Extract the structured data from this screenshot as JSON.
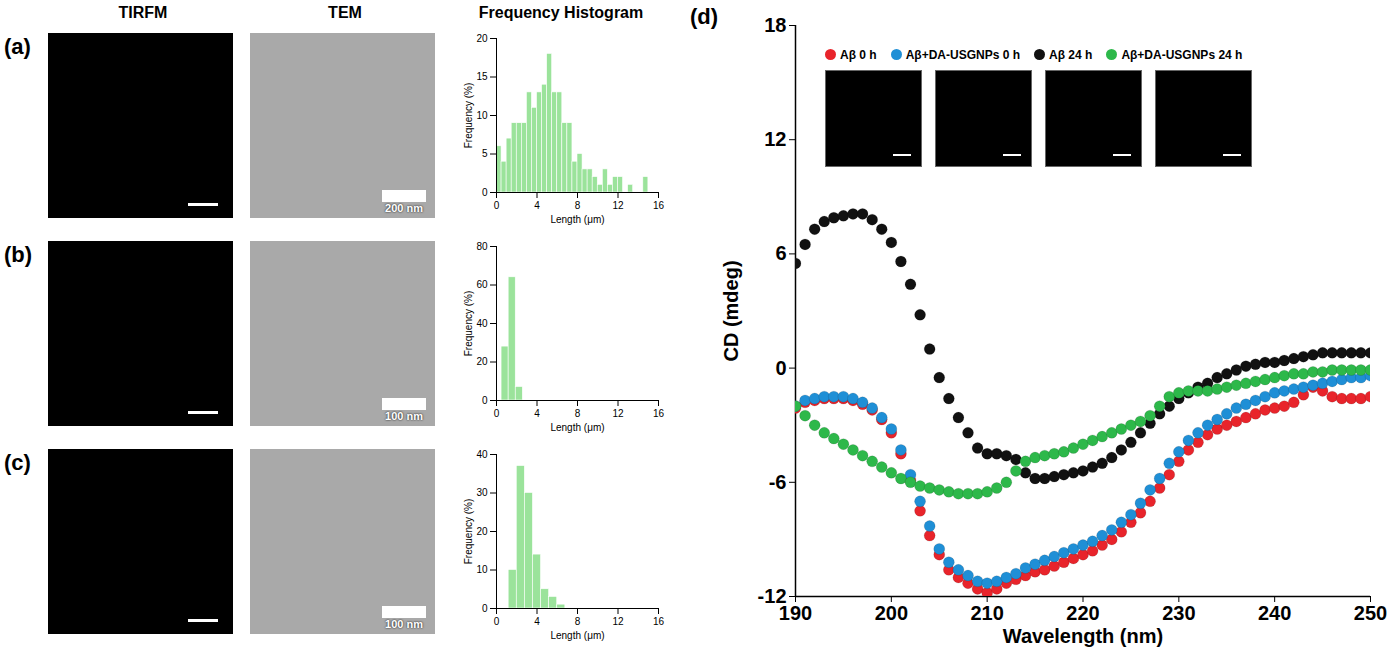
{
  "chart_data": [
    {
      "type": "histogram",
      "xlabel": "Length (μm)",
      "ylabel": "Frequency (%)",
      "bins": [
        0,
        0.5,
        1,
        1.5,
        2,
        2.5,
        3,
        3.5,
        4,
        4.5,
        5,
        5.5,
        6,
        6.5,
        7,
        7.5,
        8,
        8.5,
        9,
        9.5,
        10,
        10.5,
        11,
        11.5,
        12,
        12.5,
        13,
        13.5,
        14,
        14.5,
        15
      ],
      "values": [
        6,
        4,
        7,
        9,
        9,
        9,
        13,
        11,
        13,
        14,
        18,
        13,
        13,
        9,
        9,
        4,
        5,
        3,
        3,
        2,
        1,
        3,
        1,
        2,
        2,
        0,
        1,
        0,
        0,
        2
      ],
      "color": "#9be39b",
      "xlim": [
        0,
        16
      ],
      "xticks": [
        0,
        4,
        8,
        12,
        16
      ],
      "ylim": [
        0,
        20
      ],
      "yticks": [
        0,
        5,
        10,
        15,
        20
      ]
    },
    {
      "type": "histogram",
      "xlabel": "Length (μm)",
      "ylabel": "Frequency (%)",
      "bins": [
        0.5,
        1.2,
        1.9,
        2.6
      ],
      "values": [
        28,
        64,
        7
      ],
      "color": "#9be39b",
      "xlim": [
        0,
        16
      ],
      "xticks": [
        0,
        4,
        8,
        12,
        16
      ],
      "ylim": [
        0,
        80
      ],
      "yticks": [
        0,
        20,
        40,
        60,
        80
      ]
    },
    {
      "type": "histogram",
      "xlabel": "Length (μm)",
      "ylabel": "Frequency (%)",
      "bins": [
        1.2,
        2.0,
        2.8,
        3.6,
        4.4,
        5.2,
        6.0,
        6.8
      ],
      "values": [
        10,
        37,
        30,
        14,
        5,
        3,
        1
      ],
      "color": "#9be39b",
      "xlim": [
        0,
        16
      ],
      "xticks": [
        0,
        4,
        8,
        12,
        16
      ],
      "ylim": [
        0,
        40
      ],
      "yticks": [
        0,
        10,
        20,
        30,
        40
      ]
    },
    {
      "type": "scatter",
      "xlabel": "Wavelength (nm)",
      "ylabel": "CD (mdeg)",
      "marker": "circle",
      "legend": "top",
      "xlim": [
        190,
        250
      ],
      "xticks": [
        190,
        200,
        210,
        220,
        230,
        240,
        250
      ],
      "ylim": [
        -12,
        18
      ],
      "yticks": [
        -12,
        -6,
        0,
        6,
        12,
        18
      ],
      "x": [
        190,
        191,
        192,
        193,
        194,
        195,
        196,
        197,
        198,
        199,
        200,
        201,
        202,
        203,
        204,
        205,
        206,
        207,
        208,
        209,
        210,
        211,
        212,
        213,
        214,
        215,
        216,
        217,
        218,
        219,
        220,
        221,
        222,
        223,
        224,
        225,
        226,
        227,
        228,
        229,
        230,
        231,
        232,
        233,
        234,
        235,
        236,
        237,
        238,
        239,
        240,
        241,
        242,
        243,
        244,
        245,
        246,
        247,
        248,
        249,
        250
      ],
      "series": [
        {
          "name": "Aβ 0 h",
          "color": "#e8242b",
          "values": [
            -2.1,
            -1.8,
            -1.7,
            -1.6,
            -1.6,
            -1.6,
            -1.7,
            -1.9,
            -2.2,
            -2.7,
            -3.4,
            -4.5,
            -5.9,
            -7.5,
            -8.8,
            -9.8,
            -10.6,
            -11.0,
            -11.3,
            -11.6,
            -11.8,
            -11.6,
            -11.3,
            -11.1,
            -10.9,
            -10.7,
            -10.6,
            -10.4,
            -10.2,
            -10.0,
            -9.8,
            -9.6,
            -9.3,
            -9.0,
            -8.6,
            -8.1,
            -7.6,
            -7.0,
            -6.3,
            -5.6,
            -4.9,
            -4.3,
            -3.9,
            -3.5,
            -3.2,
            -3.0,
            -2.8,
            -2.6,
            -2.4,
            -2.2,
            -2.1,
            -2.0,
            -1.8,
            -1.4,
            -1.0,
            -1.2,
            -1.5,
            -1.6,
            -1.6,
            -1.6,
            -1.5
          ]
        },
        {
          "name": "Aβ+DA-USGNPs 0 h",
          "color": "#1f8fd6",
          "values": [
            -2.0,
            -1.7,
            -1.6,
            -1.5,
            -1.5,
            -1.5,
            -1.6,
            -1.8,
            -2.1,
            -2.6,
            -3.2,
            -4.3,
            -5.6,
            -7.0,
            -8.3,
            -9.5,
            -10.2,
            -10.6,
            -10.9,
            -11.2,
            -11.3,
            -11.2,
            -11.0,
            -10.8,
            -10.5,
            -10.3,
            -10.1,
            -9.9,
            -9.7,
            -9.5,
            -9.3,
            -9.1,
            -8.8,
            -8.5,
            -8.1,
            -7.7,
            -7.1,
            -6.4,
            -5.8,
            -5.0,
            -4.4,
            -3.8,
            -3.4,
            -3.0,
            -2.7,
            -2.4,
            -2.1,
            -1.9,
            -1.7,
            -1.5,
            -1.3,
            -1.2,
            -1.1,
            -1.0,
            -0.9,
            -0.8,
            -0.7,
            -0.6,
            -0.5,
            -0.5,
            -0.4
          ]
        },
        {
          "name": "Aβ 24 h",
          "color": "#111111",
          "values": [
            5.5,
            6.5,
            7.3,
            7.7,
            7.9,
            8.0,
            8.1,
            8.1,
            7.8,
            7.3,
            6.6,
            5.6,
            4.4,
            2.8,
            1.0,
            -0.5,
            -1.6,
            -2.6,
            -3.4,
            -4.2,
            -4.5,
            -4.5,
            -4.6,
            -4.8,
            -5.5,
            -5.8,
            -5.8,
            -5.7,
            -5.6,
            -5.5,
            -5.4,
            -5.2,
            -5.0,
            -4.7,
            -4.3,
            -3.9,
            -3.4,
            -2.9,
            -2.4,
            -2.0,
            -1.6,
            -1.3,
            -1.0,
            -0.8,
            -0.5,
            -0.3,
            -0.1,
            0.1,
            0.2,
            0.3,
            0.3,
            0.4,
            0.5,
            0.6,
            0.7,
            0.8,
            0.8,
            0.8,
            0.8,
            0.8,
            0.8
          ]
        },
        {
          "name": "Aβ+DA-USGNPs 24 h",
          "color": "#2db84a",
          "values": [
            -2.0,
            -2.5,
            -3.0,
            -3.4,
            -3.7,
            -4.0,
            -4.3,
            -4.6,
            -4.9,
            -5.2,
            -5.5,
            -5.8,
            -6.0,
            -6.2,
            -6.3,
            -6.4,
            -6.5,
            -6.6,
            -6.6,
            -6.6,
            -6.5,
            -6.3,
            -6.0,
            -5.4,
            -4.9,
            -4.7,
            -4.6,
            -4.5,
            -4.4,
            -4.2,
            -4.0,
            -3.8,
            -3.6,
            -3.4,
            -3.2,
            -3.0,
            -2.8,
            -2.5,
            -2.0,
            -1.5,
            -1.3,
            -1.2,
            -1.2,
            -1.2,
            -1.1,
            -1.0,
            -0.9,
            -0.8,
            -0.7,
            -0.6,
            -0.5,
            -0.4,
            -0.3,
            -0.3,
            -0.2,
            -0.2,
            -0.1,
            -0.1,
            -0.1,
            -0.1,
            -0.1
          ]
        }
      ]
    }
  ],
  "figure": {
    "column_titles": [
      "TIRFM",
      "TEM",
      "Frequency Histogram"
    ],
    "panel_labels": [
      "(a)",
      "(b)",
      "(c)",
      "(d)"
    ],
    "tem_scale_bars": [
      "200 nm",
      "100 nm",
      "100 nm"
    ]
  }
}
